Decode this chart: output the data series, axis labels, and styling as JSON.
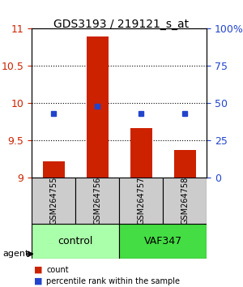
{
  "title": "GDS3193 / 219121_s_at",
  "samples": [
    "GSM264755",
    "GSM264756",
    "GSM264757",
    "GSM264758"
  ],
  "bar_values": [
    9.22,
    10.9,
    9.67,
    9.37
  ],
  "percentile_values": [
    43,
    48,
    43,
    43
  ],
  "bar_color": "#cc2200",
  "dot_color": "#2244cc",
  "ylim_left": [
    9.0,
    11.0
  ],
  "ylim_right": [
    0,
    100
  ],
  "yticks_left": [
    9.0,
    9.5,
    10.0,
    10.5,
    11.0
  ],
  "yticks_right": [
    0,
    25,
    50,
    75,
    100
  ],
  "ytick_labels_left": [
    "9",
    "9.5",
    "10",
    "10.5",
    "11"
  ],
  "ytick_labels_right": [
    "0",
    "25",
    "50",
    "75",
    "100%"
  ],
  "groups": [
    {
      "label": "control",
      "samples": [
        0,
        1
      ],
      "color": "#aaffaa"
    },
    {
      "label": "VAF347",
      "samples": [
        2,
        3
      ],
      "color": "#44dd44"
    }
  ],
  "group_row_color": "#cccccc",
  "agent_label": "agent",
  "legend_bar_label": "count",
  "legend_dot_label": "percentile rank within the sample",
  "background_color": "#ffffff",
  "grid_color": "#000000",
  "bar_width": 0.5
}
